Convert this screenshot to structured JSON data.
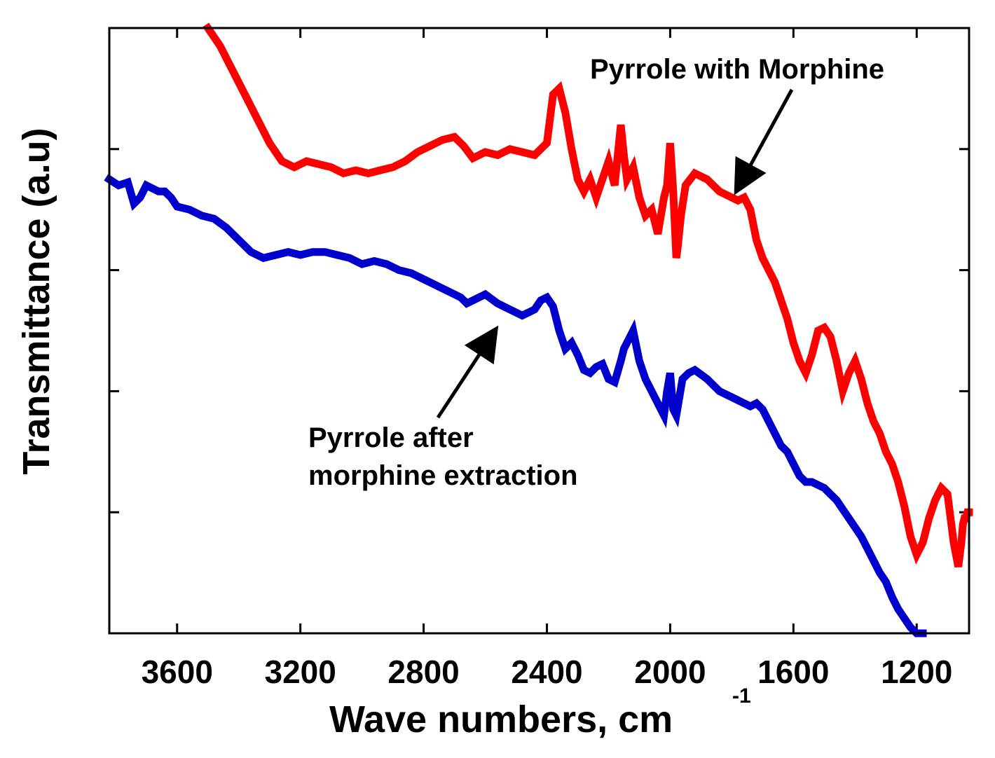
{
  "chart_data": {
    "type": "line",
    "title": "",
    "xlabel": "Wave numbers, cm",
    "xlabel_superscript": "-1",
    "ylabel": "Transmittance (a.u)",
    "xlim": [
      3820,
      1030
    ],
    "ylim": [
      0,
      10
    ],
    "x_reversed": true,
    "x_ticks": [
      3600,
      3200,
      2800,
      2400,
      2000,
      1600,
      1200
    ],
    "y_ticks_labeled": false,
    "y_ticks": [
      2,
      4,
      6,
      8
    ],
    "colors": {
      "red_series": "#ff0000",
      "blue_series": "#0000cc",
      "arrow": "#000000"
    },
    "series": [
      {
        "name": "Pyrrole with Morphine",
        "color": "#ff0000",
        "x": [
          3500,
          3460,
          3420,
          3380,
          3340,
          3300,
          3260,
          3220,
          3180,
          3140,
          3100,
          3060,
          3020,
          2980,
          2940,
          2900,
          2860,
          2820,
          2780,
          2740,
          2700,
          2670,
          2640,
          2600,
          2560,
          2520,
          2480,
          2440,
          2400,
          2380,
          2360,
          2340,
          2320,
          2300,
          2280,
          2260,
          2240,
          2220,
          2200,
          2180,
          2160,
          2150,
          2140,
          2120,
          2100,
          2080,
          2060,
          2040,
          2020,
          2010,
          2000,
          1990,
          1980,
          1975,
          1965,
          1950,
          1920,
          1880,
          1840,
          1800,
          1780,
          1760,
          1740,
          1720,
          1700,
          1680,
          1660,
          1640,
          1620,
          1600,
          1580,
          1560,
          1540,
          1520,
          1500,
          1480,
          1460,
          1440,
          1420,
          1400,
          1380,
          1360,
          1340,
          1320,
          1300,
          1280,
          1260,
          1240,
          1220,
          1200,
          1180,
          1160,
          1140,
          1120,
          1100,
          1080,
          1065,
          1060,
          1055,
          1050,
          1045,
          1040,
          1035,
          1030
        ],
        "y": [
          10.0,
          9.7,
          9.3,
          8.9,
          8.5,
          8.1,
          7.8,
          7.7,
          7.8,
          7.75,
          7.7,
          7.6,
          7.65,
          7.6,
          7.65,
          7.7,
          7.8,
          7.95,
          8.05,
          8.15,
          8.2,
          8.05,
          7.85,
          7.95,
          7.9,
          8.0,
          7.95,
          7.9,
          8.1,
          8.9,
          9.0,
          8.6,
          8.0,
          7.5,
          7.3,
          7.5,
          7.2,
          7.5,
          7.8,
          7.4,
          8.4,
          7.9,
          7.5,
          7.7,
          7.2,
          6.9,
          7.0,
          6.6,
          7.2,
          7.4,
          8.1,
          7.3,
          6.2,
          6.4,
          6.9,
          7.4,
          7.6,
          7.5,
          7.3,
          7.2,
          7.15,
          7.2,
          7.0,
          6.5,
          6.2,
          6.0,
          5.8,
          5.5,
          5.2,
          4.8,
          4.5,
          4.3,
          4.6,
          5.0,
          5.05,
          4.9,
          4.5,
          4.0,
          4.3,
          4.5,
          4.2,
          3.8,
          3.5,
          3.3,
          3.0,
          2.8,
          2.5,
          2.1,
          1.6,
          1.3,
          1.5,
          1.9,
          2.2,
          2.4,
          2.3,
          1.5,
          1.1,
          1.3,
          1.5,
          1.8,
          1.9,
          1.9,
          2.0,
          2.0
        ]
      },
      {
        "name": "Pyrrole after morphine extraction",
        "color": "#0000cc",
        "x": [
          3820,
          3790,
          3760,
          3740,
          3720,
          3700,
          3680,
          3660,
          3640,
          3620,
          3600,
          3560,
          3520,
          3480,
          3440,
          3400,
          3360,
          3320,
          3280,
          3240,
          3200,
          3160,
          3120,
          3080,
          3040,
          3000,
          2960,
          2920,
          2880,
          2840,
          2800,
          2760,
          2720,
          2680,
          2660,
          2640,
          2600,
          2560,
          2520,
          2480,
          2440,
          2420,
          2400,
          2380,
          2360,
          2340,
          2320,
          2300,
          2280,
          2260,
          2240,
          2220,
          2200,
          2180,
          2160,
          2150,
          2140,
          2120,
          2100,
          2080,
          2060,
          2040,
          2020,
          2010,
          2000,
          1990,
          1980,
          1970,
          1960,
          1940,
          1920,
          1880,
          1840,
          1800,
          1760,
          1740,
          1720,
          1700,
          1680,
          1660,
          1640,
          1620,
          1600,
          1580,
          1560,
          1540,
          1520,
          1500,
          1480,
          1460,
          1440,
          1420,
          1400,
          1380,
          1360,
          1340,
          1320,
          1300,
          1280,
          1260,
          1240,
          1220,
          1200,
          1180
        ],
        "y": [
          7.5,
          7.4,
          7.45,
          7.1,
          7.2,
          7.4,
          7.35,
          7.3,
          7.3,
          7.2,
          7.05,
          7.0,
          6.9,
          6.85,
          6.7,
          6.5,
          6.3,
          6.2,
          6.25,
          6.3,
          6.25,
          6.3,
          6.3,
          6.25,
          6.2,
          6.1,
          6.15,
          6.1,
          6.0,
          5.95,
          5.85,
          5.75,
          5.65,
          5.55,
          5.45,
          5.5,
          5.6,
          5.45,
          5.35,
          5.25,
          5.35,
          5.5,
          5.55,
          5.4,
          5.0,
          4.7,
          4.8,
          4.6,
          4.35,
          4.3,
          4.4,
          4.45,
          4.2,
          4.15,
          4.5,
          4.7,
          4.8,
          5.0,
          4.5,
          4.2,
          4.0,
          3.8,
          3.6,
          4.0,
          4.3,
          3.7,
          3.6,
          3.9,
          4.2,
          4.3,
          4.35,
          4.2,
          4.0,
          3.9,
          3.8,
          3.75,
          3.8,
          3.7,
          3.5,
          3.3,
          3.1,
          3.0,
          2.8,
          2.6,
          2.5,
          2.5,
          2.45,
          2.4,
          2.3,
          2.2,
          2.05,
          1.9,
          1.75,
          1.6,
          1.4,
          1.2,
          1.0,
          0.85,
          0.6,
          0.4,
          0.25,
          0.1,
          0.0,
          0.0
        ]
      }
    ],
    "annotations": [
      {
        "lines": [
          "Pyrrole with Morphine"
        ],
        "arrow_target": {
          "x": 1800,
          "y": 7.2
        }
      },
      {
        "lines": [
          "Pyrrole after",
          "morphine extraction"
        ],
        "arrow_target": {
          "x": 2570,
          "y": 5.15
        }
      }
    ]
  }
}
